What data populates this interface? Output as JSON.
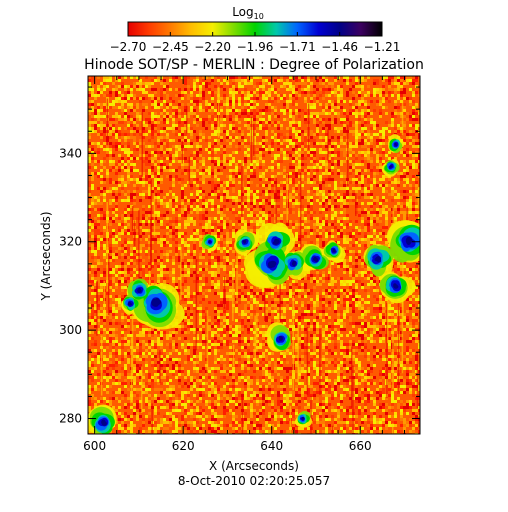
{
  "chart_data": {
    "type": "heatmap",
    "title": "Hinode SOT/SP - MERLIN : Degree of Polarization",
    "xlabel": "X (Arcseconds)",
    "ylabel": "Y (Arcseconds)",
    "footer": "8-Oct-2010 02:20:25.057",
    "xlim": [
      598.5,
      673.5
    ],
    "ylim": [
      276.5,
      357.5
    ],
    "x_ticks": [
      600,
      620,
      640,
      660
    ],
    "y_ticks": [
      280,
      300,
      320,
      340
    ],
    "colorbar": {
      "label_base": "Log",
      "label_sub": "10",
      "ticks": [
        "-2.70",
        "-2.45",
        "-2.20",
        "-1.96",
        "-1.71",
        "-1.46",
        "-1.21"
      ],
      "range": [
        -2.7,
        -1.21
      ],
      "colormap": [
        "#e60000",
        "#ff3c00",
        "#ff7a00",
        "#ffbe00",
        "#f5ee00",
        "#7ddc00",
        "#00d400",
        "#00c8aa",
        "#0064ff",
        "#0000d2",
        "#000088",
        "#3c0060",
        "#000000"
      ]
    },
    "features": [
      {
        "x": 614,
        "y": 306,
        "r": 4.5
      },
      {
        "x": 610,
        "y": 309,
        "r": 2.5
      },
      {
        "x": 640,
        "y": 315,
        "r": 4.0
      },
      {
        "x": 641,
        "y": 320,
        "r": 3.0
      },
      {
        "x": 645,
        "y": 315,
        "r": 2.5
      },
      {
        "x": 634,
        "y": 320,
        "r": 2.0
      },
      {
        "x": 642,
        "y": 298,
        "r": 2.5
      },
      {
        "x": 650,
        "y": 316,
        "r": 2.5
      },
      {
        "x": 664,
        "y": 316,
        "r": 3.0
      },
      {
        "x": 668,
        "y": 310,
        "r": 3.0
      },
      {
        "x": 671,
        "y": 320,
        "r": 4.0
      },
      {
        "x": 667,
        "y": 337,
        "r": 1.5
      },
      {
        "x": 668,
        "y": 342,
        "r": 1.5
      },
      {
        "x": 654,
        "y": 318,
        "r": 1.8
      },
      {
        "x": 608,
        "y": 306,
        "r": 1.8
      },
      {
        "x": 602,
        "y": 279,
        "r": 3.0
      },
      {
        "x": 626,
        "y": 320,
        "r": 1.5
      },
      {
        "x": 647,
        "y": 280,
        "r": 1.5
      }
    ]
  }
}
